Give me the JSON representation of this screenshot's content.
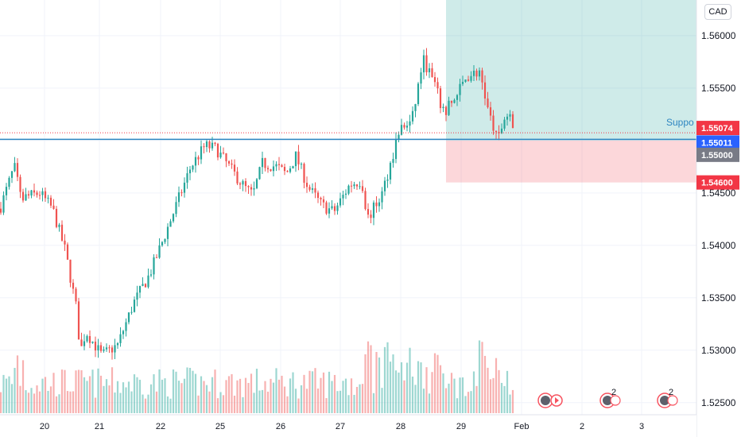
{
  "header": {
    "currency": "CAD"
  },
  "annotations": {
    "support_label": "Suppo"
  },
  "chart_data": {
    "type": "candlestick",
    "symbol_currency": "CAD",
    "ylim": [
      1.5243,
      1.5634
    ],
    "y_ticks": [
      "1.56000",
      "1.55500",
      "1.55000",
      "1.54500",
      "1.54000",
      "1.53500",
      "1.53000",
      "1.52500"
    ],
    "y_tick_values": [
      1.56,
      1.555,
      1.55,
      1.545,
      1.54,
      1.535,
      1.53,
      1.525
    ],
    "x_ticks": [
      "20",
      "21",
      "22",
      "25",
      "26",
      "27",
      "28",
      "29",
      "Feb",
      "2",
      "3"
    ],
    "price_badges": [
      {
        "label": "1.55074",
        "value": 1.55074,
        "color": "#f23645"
      },
      {
        "label": "1.55011",
        "value": 1.55011,
        "color": "#2962ff"
      },
      {
        "label": "1.55000",
        "value": 1.55,
        "color": "#787b86"
      },
      {
        "label": "1.54600",
        "value": 1.546,
        "color": "#f23645"
      }
    ],
    "support_level": 1.55011,
    "current_price": 1.55074,
    "position": {
      "entry": 1.55,
      "take_profit_top": 1.5634,
      "stop_loss": 1.546
    },
    "event_badges": [
      "",
      "2",
      "2"
    ],
    "series": [
      {
        "name": "price",
        "waypoints": [
          [
            0,
            1.5435
          ],
          [
            18,
            1.5475
          ],
          [
            28,
            1.5445
          ],
          [
            50,
            1.545
          ],
          [
            66,
            1.5435
          ],
          [
            82,
            1.5395
          ],
          [
            96,
            1.534
          ],
          [
            101,
            1.5298
          ],
          [
            108,
            1.5318
          ],
          [
            128,
            1.5295
          ],
          [
            148,
            1.5305
          ],
          [
            168,
            1.5345
          ],
          [
            188,
            1.5372
          ],
          [
            205,
            1.5405
          ],
          [
            220,
            1.5435
          ],
          [
            240,
            1.5475
          ],
          [
            258,
            1.5495
          ],
          [
            272,
            1.5492
          ],
          [
            288,
            1.5475
          ],
          [
            308,
            1.5455
          ],
          [
            318,
            1.5448
          ],
          [
            330,
            1.5478
          ],
          [
            348,
            1.5475
          ],
          [
            360,
            1.5468
          ],
          [
            372,
            1.5485
          ],
          [
            388,
            1.5455
          ],
          [
            405,
            1.5438
          ],
          [
            420,
            1.5432
          ],
          [
            440,
            1.5458
          ],
          [
            455,
            1.5462
          ],
          [
            462,
            1.5425
          ],
          [
            480,
            1.5448
          ],
          [
            490,
            1.5475
          ],
          [
            502,
            1.551
          ],
          [
            518,
            1.5518
          ],
          [
            532,
            1.5578
          ],
          [
            546,
            1.5555
          ],
          [
            558,
            1.5525
          ],
          [
            572,
            1.554
          ],
          [
            588,
            1.5562
          ],
          [
            604,
            1.5566
          ],
          [
            614,
            1.5528
          ],
          [
            626,
            1.5498
          ],
          [
            634,
            1.5522
          ],
          [
            642,
            1.5526
          ],
          [
            648,
            1.5507
          ]
        ]
      },
      {
        "name": "volume",
        "range": [
          1,
          10
        ]
      }
    ]
  }
}
